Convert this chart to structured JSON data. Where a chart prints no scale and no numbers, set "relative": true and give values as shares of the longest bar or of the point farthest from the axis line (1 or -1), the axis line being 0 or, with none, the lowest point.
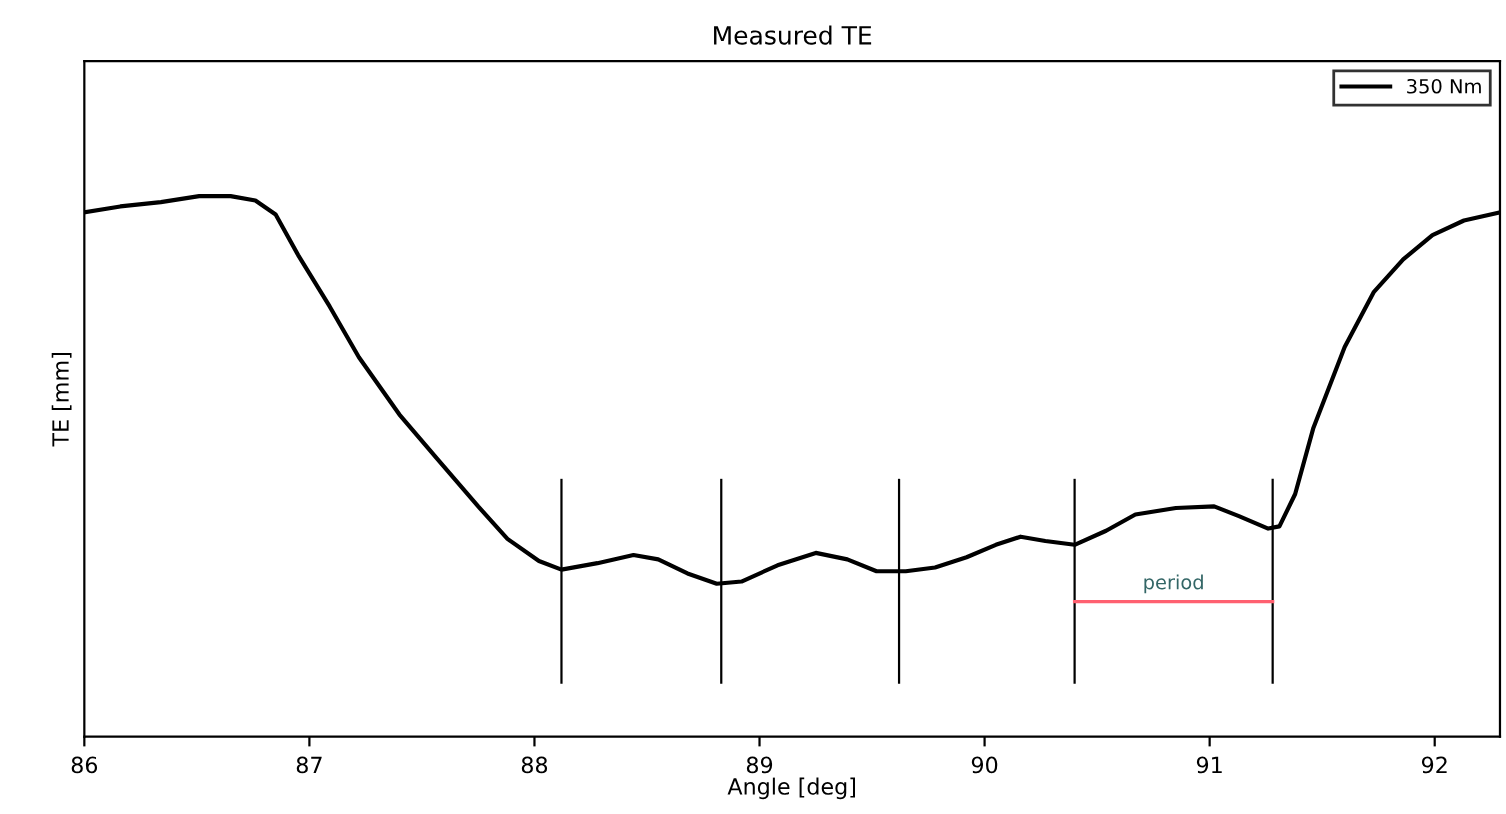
{
  "chart_data": {
    "type": "line",
    "title": "Measured TE",
    "xlabel": "Angle [deg]",
    "ylabel": "TE [mm]",
    "relative": true,
    "xlim": [
      86,
      92.29
    ],
    "xticks": [
      86,
      87,
      88,
      89,
      90,
      91,
      92
    ],
    "grid": false,
    "legend": "top right",
    "series": [
      {
        "name": "350 Nm",
        "color": "#000000",
        "x": [
          86.0,
          86.16,
          86.34,
          86.51,
          86.65,
          86.76,
          86.85,
          86.95,
          87.09,
          87.22,
          87.4,
          87.57,
          87.75,
          87.88,
          88.02,
          88.12,
          88.28,
          88.44,
          88.55,
          88.68,
          88.81,
          88.92,
          89.08,
          89.25,
          89.39,
          89.52,
          89.65,
          89.78,
          89.92,
          90.05,
          90.16,
          90.27,
          90.4,
          90.54,
          90.67,
          90.85,
          91.02,
          91.13,
          91.26,
          91.31,
          91.38,
          91.46,
          91.6,
          91.73,
          91.86,
          91.99,
          92.13,
          92.29
        ],
        "values": [
          0.97,
          0.981,
          0.989,
          1.0,
          1.0,
          0.992,
          0.966,
          0.891,
          0.796,
          0.702,
          0.596,
          0.513,
          0.426,
          0.366,
          0.325,
          0.309,
          0.321,
          0.336,
          0.328,
          0.302,
          0.283,
          0.287,
          0.317,
          0.34,
          0.328,
          0.306,
          0.306,
          0.313,
          0.332,
          0.355,
          0.37,
          0.362,
          0.355,
          0.381,
          0.411,
          0.423,
          0.426,
          0.408,
          0.385,
          0.389,
          0.449,
          0.57,
          0.721,
          0.823,
          0.883,
          0.928,
          0.955,
          0.97
        ]
      },
      {
        "type": "line",
        "color": "#ff6070",
        "x": [
          90.4,
          91.28
        ],
        "values": [
          0.25,
          0.25
        ]
      }
    ],
    "ref_lines": [
      {
        "axis": "x",
        "value": 88.12,
        "color": "#000000"
      },
      {
        "axis": "x",
        "value": 88.83,
        "color": "#000000"
      },
      {
        "axis": "x",
        "value": 89.62,
        "color": "#000000"
      },
      {
        "axis": "x",
        "value": 90.4,
        "color": "#000000"
      },
      {
        "axis": "x",
        "value": 91.28,
        "color": "#000000"
      }
    ],
    "annotations": [
      {
        "text": "period",
        "x": 90.84,
        "y": 0.25
      }
    ]
  }
}
